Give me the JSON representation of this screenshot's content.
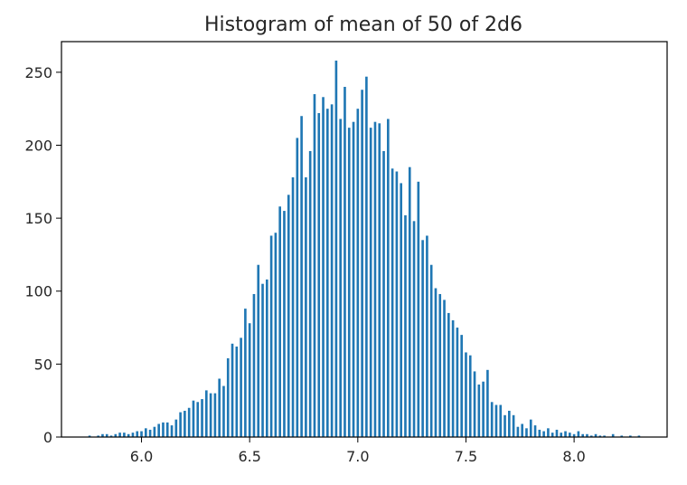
{
  "chart_data": {
    "type": "bar",
    "title": "Histogram of mean of 50 of 2d6",
    "xlabel": "",
    "ylabel": "",
    "xlim": [
      5.63,
      8.43
    ],
    "ylim": [
      0,
      271
    ],
    "grid": false,
    "bar_color": "#1f77b4",
    "bar_width": 0.011,
    "x_ticks": [
      {
        "value": 6.0,
        "label": "6.0"
      },
      {
        "value": 6.5,
        "label": "6.5"
      },
      {
        "value": 7.0,
        "label": "7.0"
      },
      {
        "value": 7.5,
        "label": "7.5"
      },
      {
        "value": 8.0,
        "label": "8.0"
      }
    ],
    "y_ticks": [
      {
        "value": 0,
        "label": "0"
      },
      {
        "value": 50,
        "label": "50"
      },
      {
        "value": 100,
        "label": "100"
      },
      {
        "value": 150,
        "label": "150"
      },
      {
        "value": 200,
        "label": "200"
      },
      {
        "value": 250,
        "label": "250"
      }
    ],
    "x": [
      5.76,
      5.8,
      5.82,
      5.84,
      5.86,
      5.88,
      5.9,
      5.92,
      5.94,
      5.96,
      5.98,
      6.0,
      6.02,
      6.04,
      6.06,
      6.08,
      6.1,
      6.12,
      6.14,
      6.16,
      6.18,
      6.2,
      6.22,
      6.24,
      6.26,
      6.28,
      6.3,
      6.32,
      6.34,
      6.36,
      6.38,
      6.4,
      6.42,
      6.44,
      6.46,
      6.48,
      6.5,
      6.52,
      6.54,
      6.56,
      6.58,
      6.6,
      6.62,
      6.64,
      6.66,
      6.68,
      6.7,
      6.72,
      6.74,
      6.76,
      6.78,
      6.8,
      6.82,
      6.84,
      6.86,
      6.88,
      6.9,
      6.92,
      6.94,
      6.96,
      6.98,
      7.0,
      7.02,
      7.04,
      7.06,
      7.08,
      7.1,
      7.12,
      7.14,
      7.16,
      7.18,
      7.2,
      7.22,
      7.24,
      7.26,
      7.28,
      7.3,
      7.32,
      7.34,
      7.36,
      7.38,
      7.4,
      7.42,
      7.44,
      7.46,
      7.48,
      7.5,
      7.52,
      7.54,
      7.56,
      7.58,
      7.6,
      7.62,
      7.64,
      7.66,
      7.68,
      7.7,
      7.72,
      7.74,
      7.76,
      7.78,
      7.8,
      7.82,
      7.84,
      7.86,
      7.88,
      7.9,
      7.92,
      7.94,
      7.96,
      7.98,
      8.0,
      8.02,
      8.04,
      8.06,
      8.08,
      8.1,
      8.12,
      8.14,
      8.18,
      8.22,
      8.26,
      8.3
    ],
    "values": [
      1,
      1,
      2,
      2,
      1,
      2,
      3,
      3,
      2,
      3,
      4,
      4,
      6,
      5,
      7,
      9,
      10,
      10,
      8,
      12,
      17,
      18,
      20,
      25,
      24,
      26,
      32,
      30,
      30,
      40,
      35,
      54,
      64,
      62,
      68,
      88,
      78,
      98,
      118,
      105,
      108,
      138,
      140,
      158,
      155,
      166,
      178,
      205,
      220,
      178,
      196,
      235,
      222,
      233,
      225,
      228,
      258,
      218,
      240,
      212,
      216,
      225,
      238,
      247,
      212,
      216,
      215,
      196,
      218,
      184,
      182,
      174,
      152,
      185,
      148,
      175,
      135,
      138,
      118,
      102,
      98,
      94,
      85,
      80,
      75,
      70,
      58,
      56,
      45,
      36,
      38,
      46,
      24,
      22,
      22,
      15,
      18,
      15,
      7,
      9,
      6,
      12,
      8,
      5,
      4,
      6,
      3,
      5,
      3,
      4,
      3,
      2,
      4,
      2,
      2,
      1,
      2,
      1,
      1,
      2,
      1,
      1,
      1
    ]
  }
}
